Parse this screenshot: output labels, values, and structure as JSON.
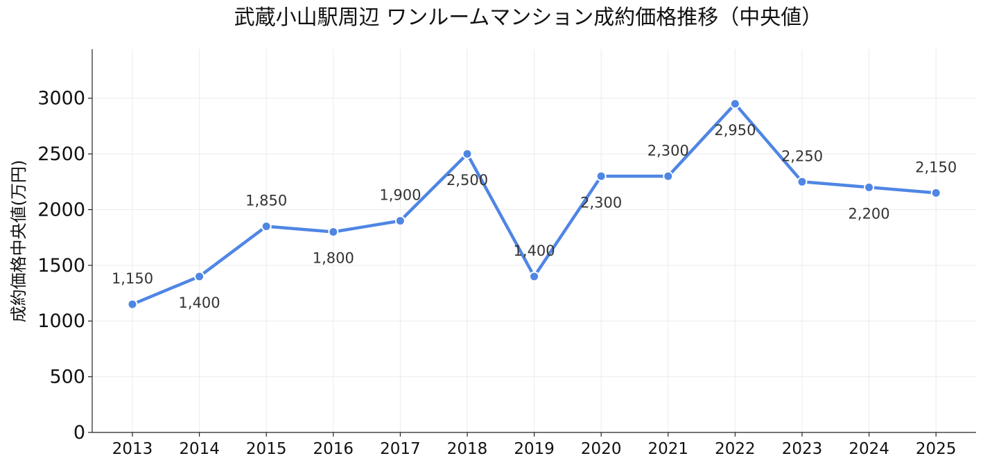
{
  "chart_data": {
    "type": "line",
    "title": "武蔵小山駅周辺 ワンルームマンション成約価格推移（中央値）",
    "xlabel": "",
    "ylabel": "成約価格中央値(万円)",
    "x": [
      "2013",
      "2014",
      "2015",
      "2016",
      "2017",
      "2018",
      "2019",
      "2020",
      "2021",
      "2022",
      "2023",
      "2024",
      "2025"
    ],
    "series": [
      {
        "values": [
          1150,
          1400,
          1850,
          1800,
          1900,
          2500,
          1400,
          2300,
          2300,
          2950,
          2250,
          2200,
          2150
        ],
        "data_labels": [
          "1,150",
          "1,400",
          "1,850",
          "1,800",
          "1,900",
          "2,500",
          "1,400",
          "2,300",
          "2,300",
          "2,950",
          "2,250",
          "2,200",
          "2,150"
        ],
        "label_positions": [
          "above",
          "below",
          "above",
          "below",
          "above",
          "below",
          "above",
          "below",
          "above",
          "below",
          "above",
          "below",
          "above"
        ],
        "color": "#4f86e4"
      }
    ],
    "yticks": [
      "0",
      "500",
      "1000",
      "1500",
      "2000",
      "2500",
      "3000"
    ],
    "ylim": [
      0,
      3440
    ],
    "grid": true,
    "legend": "none"
  }
}
